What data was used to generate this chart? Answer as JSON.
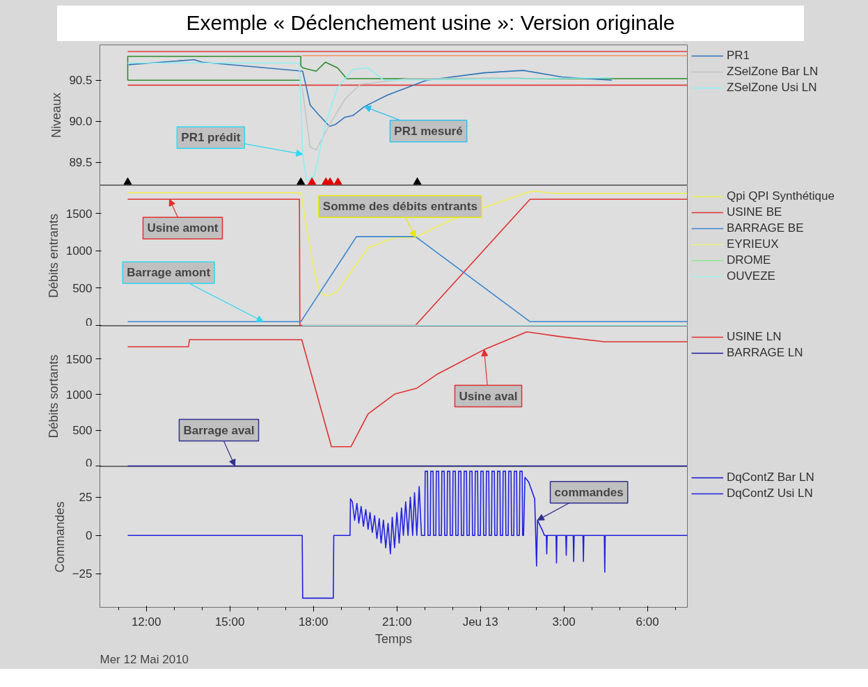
{
  "chart_data": [
    {
      "type": "line",
      "title": "Exemple «  Déclenchement usine  »: Version  originale",
      "ylabel": "Niveaux",
      "xlim": [
        "2010-05-12T10:20",
        "2010-05-13T07:26"
      ],
      "ylim": [
        89.22,
        90.93
      ],
      "yticks": [
        89.5,
        {
          "value": 90,
          "label": "90.0"
        },
        90.5
      ],
      "tick_labels": "y",
      "legend": "right",
      "annotations": [
        {
          "text": "PR1 prédit",
          "x": "2010-05-12T17:37",
          "y": 89.6
        },
        {
          "text": "PR1 mesuré",
          "x": "2010-05-12T19:50",
          "y": 90.18
        }
      ],
      "series": [
        {
          "color": "#e03c3c",
          "x": [
            "2010-05-12T11:20",
            "2010-05-13T07:26"
          ],
          "values": [
            90.85,
            90.85
          ]
        },
        {
          "color": "#e03c3c",
          "x": [
            "2010-05-12T11:20",
            "2010-05-13T07:26"
          ],
          "values": [
            90.44,
            90.44
          ]
        },
        {
          "color": "#f4a070",
          "x": [
            "2010-05-12T17:36",
            "2010-05-13T07:26"
          ],
          "values": [
            90.8,
            90.8
          ]
        },
        {
          "color": "#2e8b2e",
          "x": [
            "2010-05-12T11:20",
            "2010-05-12T11:20",
            "2010-05-12T17:33",
            "2010-05-12T17:33",
            "2010-05-12T17:37",
            "2010-05-12T18:06",
            "2010-05-12T18:26",
            "2010-05-12T18:52",
            "2010-05-12T19:12",
            "2010-05-13T07:26"
          ],
          "values": [
            90.5,
            90.79,
            90.79,
            90.68,
            90.65,
            90.61,
            90.72,
            90.65,
            90.52,
            90.52
          ]
        },
        {
          "color": "#2e8b2e",
          "x": [
            "2010-05-12T11:20",
            "2010-05-12T17:33"
          ],
          "values": [
            90.5,
            90.5
          ]
        },
        {
          "name": "PR1",
          "color": "#2f74b8",
          "x": [
            "2010-05-12T11:22",
            "2010-05-12T13:43",
            "2010-05-12T14:00",
            "2010-05-12T17:37",
            "2010-05-12T17:45",
            "2010-05-12T17:53",
            "2010-05-12T18:10",
            "2010-05-12T18:35",
            "2010-05-12T18:47",
            "2010-05-12T19:08",
            "2010-05-12T19:25",
            "2010-05-12T19:50",
            "2010-05-12T20:40",
            "2010-05-12T22:04",
            "2010-05-13T00:08",
            "2010-05-13T01:32",
            "2010-05-13T02:55",
            "2010-05-13T04:43"
          ],
          "values": [
            90.69,
            90.75,
            90.72,
            90.61,
            90.41,
            90.2,
            90.09,
            89.94,
            89.96,
            90.05,
            90.07,
            90.18,
            90.32,
            90.5,
            90.59,
            90.62,
            90.54,
            90.5
          ]
        },
        {
          "name": "ZSelZone Bar LN",
          "color": "#c4c4c4",
          "x": [
            "2010-05-12T17:36",
            "2010-05-12T17:53",
            "2010-05-12T18:06",
            "2010-05-12T18:35",
            "2010-05-12T19:08",
            "2010-05-12T19:41",
            "2010-05-12T21:22",
            "2010-05-13T01:30"
          ],
          "values": [
            90.41,
            89.69,
            89.65,
            89.96,
            90.27,
            90.45,
            90.52,
            90.53
          ]
        },
        {
          "name": "ZSelZone Usi LN",
          "color": "#8ff0f0",
          "x": [
            "2010-05-12T11:20",
            "2010-05-12T17:30",
            "2010-05-12T17:37",
            "2010-05-12T17:45",
            "2010-05-12T18:02",
            "2010-05-12T18:26",
            "2010-05-12T18:52",
            "2010-05-12T19:25",
            "2010-05-12T19:58",
            "2010-05-12T20:32",
            "2010-05-13T04:42"
          ],
          "values": [
            90.71,
            90.71,
            89.6,
            89.29,
            89.33,
            89.96,
            90.41,
            90.63,
            90.65,
            90.5,
            90.53
          ]
        },
        {
          "type": "scatter",
          "marker": "triangle",
          "color": "#000000",
          "x": [
            "2010-05-12T11:20",
            "2010-05-12T17:33",
            "2010-05-12T21:44"
          ],
          "values": [
            89.26,
            89.26,
            89.26
          ]
        },
        {
          "type": "scatter",
          "marker": "triangle",
          "color": "#e00000",
          "x": [
            "2010-05-12T17:57",
            "2010-05-12T18:27",
            "2010-05-12T18:36",
            "2010-05-12T18:53"
          ],
          "values": [
            89.26,
            89.26,
            89.26,
            89.26
          ]
        }
      ]
    },
    {
      "type": "line",
      "ylabel": "Débits entrants",
      "xlim": [
        "2010-05-12T10:20",
        "2010-05-13T07:26"
      ],
      "ylim": [
        -10,
        1875
      ],
      "yticks": [
        0,
        500,
        1000,
        1500
      ],
      "tick_labels": "y",
      "legend": "right",
      "annotations": [
        {
          "text": "Somme des débits entrants",
          "x": "2010-05-12T21:40",
          "y": 1180
        },
        {
          "text": "Usine amont",
          "x": "2010-05-12T12:50",
          "y": 1690
        },
        {
          "text": "Barrage amont",
          "x": "2010-05-12T16:12",
          "y": 50
        }
      ],
      "series": [
        {
          "name": "Qpi QPI Synthétique",
          "color": "#f0f050",
          "x": [
            "2010-05-12T11:20",
            "2010-05-12T17:33",
            "2010-05-12T17:45",
            "2010-05-12T18:02",
            "2010-05-12T18:14",
            "2010-05-12T18:31",
            "2010-05-12T18:52",
            "2010-05-12T19:58",
            "2010-05-12T20:56",
            "2010-05-12T21:40",
            "2010-05-12T22:45",
            "2010-05-13T00:08",
            "2010-05-13T01:40",
            "2010-05-13T01:56",
            "2010-05-13T02:38",
            "2010-05-13T07:26"
          ],
          "values": [
            1780,
            1780,
            1330,
            730,
            440,
            390,
            460,
            1040,
            1180,
            1180,
            1380,
            1580,
            1780,
            1800,
            1770,
            1770
          ]
        },
        {
          "name": "USINE BE",
          "color": "#e03030",
          "x": [
            "2010-05-12T11:20",
            "2010-05-12T17:30",
            "2010-05-12T17:31",
            "2010-05-12T21:40",
            "2010-05-13T01:47",
            "2010-05-13T07:26"
          ],
          "values": [
            1690,
            1690,
            0,
            0,
            1690,
            1690
          ]
        },
        {
          "name": "BARRAGE BE",
          "color": "#3a85d0",
          "x": [
            "2010-05-12T11:20",
            "2010-05-12T17:33",
            "2010-05-12T19:33",
            "2010-05-12T21:40",
            "2010-05-13T01:47",
            "2010-05-13T07:26"
          ],
          "values": [
            50,
            50,
            1190,
            1190,
            50,
            50
          ]
        },
        {
          "name": "EYRIEUX",
          "color": "#f0f080"
        },
        {
          "name": "DROME",
          "color": "#90e890"
        },
        {
          "name": "OUVEZE",
          "color": "#a0f0f0",
          "x": [
            "2010-05-12T17:36",
            "2010-05-13T07:26"
          ],
          "values": [
            0,
            0
          ]
        }
      ]
    },
    {
      "type": "line",
      "ylabel": "Débits sortants",
      "xlim": [
        "2010-05-12T10:20",
        "2010-05-13T07:26"
      ],
      "ylim": [
        -10,
        1960
      ],
      "yticks": [
        0,
        500,
        1000,
        1500
      ],
      "tick_labels": "y",
      "legend": "right",
      "annotations": [
        {
          "text": "Usine aval",
          "x": "2010-05-13T00:08",
          "y": 1630
        },
        {
          "text": "Barrage aval",
          "x": "2010-05-12T15:11",
          "y": 0
        }
      ],
      "series": [
        {
          "name": "USINE LN",
          "color": "#e03030",
          "x": [
            "2010-05-12T11:20",
            "2010-05-12T13:31",
            "2010-05-12T13:33",
            "2010-05-12T17:35",
            "2010-05-12T18:39",
            "2010-05-12T19:21",
            "2010-05-12T19:58",
            "2010-05-12T20:56",
            "2010-05-12T21:43",
            "2010-05-12T22:28",
            "2010-05-13T00:08",
            "2010-05-13T01:40",
            "2010-05-13T02:55",
            "2010-05-13T04:27",
            "2010-05-13T07:26"
          ],
          "values": [
            1670,
            1670,
            1770,
            1770,
            270,
            270,
            730,
            1010,
            1090,
            1290,
            1630,
            1880,
            1810,
            1740,
            1740
          ]
        },
        {
          "name": "BARRAGE LN",
          "color": "#1a1aa0",
          "x": [
            "2010-05-12T11:20",
            "2010-05-13T07:26"
          ],
          "values": [
            0,
            0
          ]
        }
      ]
    },
    {
      "type": "line",
      "ylabel": "Commandes",
      "xlabel": "Temps",
      "xlim": [
        "2010-05-12T10:20",
        "2010-05-13T07:26"
      ],
      "xticks": [
        {
          "value": "2010-05-12T12:00",
          "label": "12:00"
        },
        {
          "value": "2010-05-12T15:00",
          "label": "15:00"
        },
        {
          "value": "2010-05-12T18:00",
          "label": "18:00"
        },
        {
          "value": "2010-05-12T21:00",
          "label": "21:00"
        },
        {
          "value": "2010-05-13T00:00",
          "label": "Jeu 13"
        },
        {
          "value": "2010-05-13T03:00",
          "label": "3:00"
        },
        {
          "value": "2010-05-13T06:00",
          "label": "6:00"
        }
      ],
      "ylim": [
        -47,
        45
      ],
      "yticks": [
        -25,
        0,
        25
      ],
      "legend": "right",
      "annotations": [
        "Mer 12 Mai 2010",
        {
          "text": "commandes",
          "x": "2010-05-13T02:03",
          "y": 10
        }
      ],
      "series": [
        {
          "name": "DqContZ Bar LN",
          "color": "#1010d0"
        },
        {
          "name": "DqContZ Usi LN",
          "color": "#2020e0",
          "x": [
            "2010-05-12T11:20",
            "2010-05-12T17:36",
            "2010-05-12T17:37",
            "2010-05-12T18:43",
            "2010-05-12T18:44",
            "2010-05-12T19:19",
            "2010-05-12T19:20",
            "2010-05-12T19:24",
            "2010-05-12T19:29",
            "2010-05-12T19:34",
            "2010-05-12T19:38",
            "2010-05-12T19:43",
            "2010-05-12T19:48",
            "2010-05-12T19:53",
            "2010-05-12T19:58",
            "2010-05-12T20:02",
            "2010-05-12T20:07",
            "2010-05-12T20:12",
            "2010-05-12T20:17",
            "2010-05-12T20:22",
            "2010-05-12T20:26",
            "2010-05-12T20:31",
            "2010-05-12T20:36",
            "2010-05-12T20:41",
            "2010-05-12T20:46",
            "2010-05-12T20:50",
            "2010-05-12T20:55",
            "2010-05-12T21:00",
            "2010-05-12T21:05",
            "2010-05-12T21:10",
            "2010-05-12T21:14",
            "2010-05-12T21:19",
            "2010-05-12T21:24",
            "2010-05-12T21:29",
            "2010-05-12T21:34",
            "2010-05-12T21:38",
            "2010-05-12T21:43",
            "2010-05-12T21:48",
            "2010-05-12T21:53",
            "2010-05-12T22:00",
            "2010-05-12T22:01",
            "2010-05-12T22:06",
            "2010-05-12T22:07",
            "2010-05-12T22:12",
            "2010-05-12T22:13",
            "2010-05-12T22:18",
            "2010-05-12T22:19",
            "2010-05-12T22:24",
            "2010-05-12T22:25",
            "2010-05-12T22:30",
            "2010-05-12T22:31",
            "2010-05-12T22:36",
            "2010-05-12T22:37",
            "2010-05-12T22:42",
            "2010-05-12T22:43",
            "2010-05-12T22:48",
            "2010-05-12T22:49",
            "2010-05-12T22:54",
            "2010-05-12T22:55",
            "2010-05-12T23:00",
            "2010-05-12T23:01",
            "2010-05-12T23:06",
            "2010-05-12T23:07",
            "2010-05-12T23:12",
            "2010-05-12T23:13",
            "2010-05-12T23:18",
            "2010-05-12T23:19",
            "2010-05-12T23:24",
            "2010-05-12T23:25",
            "2010-05-12T23:30",
            "2010-05-12T23:31",
            "2010-05-12T23:36",
            "2010-05-12T23:37",
            "2010-05-12T23:42",
            "2010-05-12T23:43",
            "2010-05-12T23:48",
            "2010-05-12T23:49",
            "2010-05-12T23:54",
            "2010-05-12T23:55",
            "2010-05-13T00:00",
            "2010-05-13T00:01",
            "2010-05-13T00:06",
            "2010-05-13T00:07",
            "2010-05-13T00:12",
            "2010-05-13T00:13",
            "2010-05-13T00:18",
            "2010-05-13T00:19",
            "2010-05-13T00:24",
            "2010-05-13T00:25",
            "2010-05-13T00:30",
            "2010-05-13T00:31",
            "2010-05-13T00:36",
            "2010-05-13T00:37",
            "2010-05-13T00:42",
            "2010-05-13T00:43",
            "2010-05-13T00:48",
            "2010-05-13T00:49",
            "2010-05-13T00:54",
            "2010-05-13T00:55",
            "2010-05-13T01:00",
            "2010-05-13T01:01",
            "2010-05-13T01:06",
            "2010-05-13T01:07",
            "2010-05-13T01:12",
            "2010-05-13T01:13",
            "2010-05-13T01:18",
            "2010-05-13T01:19",
            "2010-05-13T01:24",
            "2010-05-13T01:25",
            "2010-05-13T01:30",
            "2010-05-13T01:31",
            "2010-05-13T01:33",
            "2010-05-13T01:36",
            "2010-05-13T01:44",
            "2010-05-13T01:57",
            "2010-05-13T02:01",
            "2010-05-13T02:03",
            "2010-05-13T02:14",
            "2010-05-13T02:18",
            "2010-05-13T02:22",
            "2010-05-13T02:23",
            "2010-05-13T02:24",
            "2010-05-13T02:43",
            "2010-05-13T02:44",
            "2010-05-13T02:45",
            "2010-05-13T03:04",
            "2010-05-13T03:05",
            "2010-05-13T03:06",
            "2010-05-13T03:20",
            "2010-05-13T03:21",
            "2010-05-13T03:22",
            "2010-05-13T03:41",
            "2010-05-13T03:42",
            "2010-05-13T03:43",
            "2010-05-13T04:27",
            "2010-05-13T04:28",
            "2010-05-13T04:29",
            "2010-05-13T07:26"
          ],
          "values": [
            0,
            0,
            -41,
            -41,
            0,
            0,
            24,
            22,
            10,
            21,
            8,
            19,
            6,
            17,
            4,
            15,
            2,
            13,
            -2,
            11,
            -5,
            10,
            -8,
            8,
            -12,
            12,
            -8,
            15,
            -5,
            18,
            0,
            22,
            0,
            25,
            0,
            28,
            0,
            32,
            0,
            0,
            42,
            42,
            0,
            0,
            42,
            42,
            0,
            0,
            42,
            42,
            0,
            0,
            42,
            42,
            0,
            0,
            42,
            42,
            0,
            0,
            42,
            42,
            0,
            0,
            42,
            42,
            0,
            0,
            42,
            42,
            0,
            0,
            42,
            42,
            0,
            0,
            42,
            42,
            0,
            0,
            42,
            42,
            0,
            0,
            42,
            42,
            0,
            0,
            42,
            42,
            0,
            0,
            42,
            42,
            0,
            0,
            42,
            42,
            0,
            0,
            42,
            42,
            0,
            0,
            42,
            42,
            0,
            0,
            42,
            42,
            0,
            0,
            38,
            35,
            24,
            -20,
            10,
            3,
            0,
            0,
            -12,
            0,
            0,
            -18,
            0,
            0,
            -13,
            0,
            0,
            -17,
            0,
            0,
            -17,
            0,
            0,
            -24,
            0,
            0
          ]
        }
      ]
    }
  ]
}
